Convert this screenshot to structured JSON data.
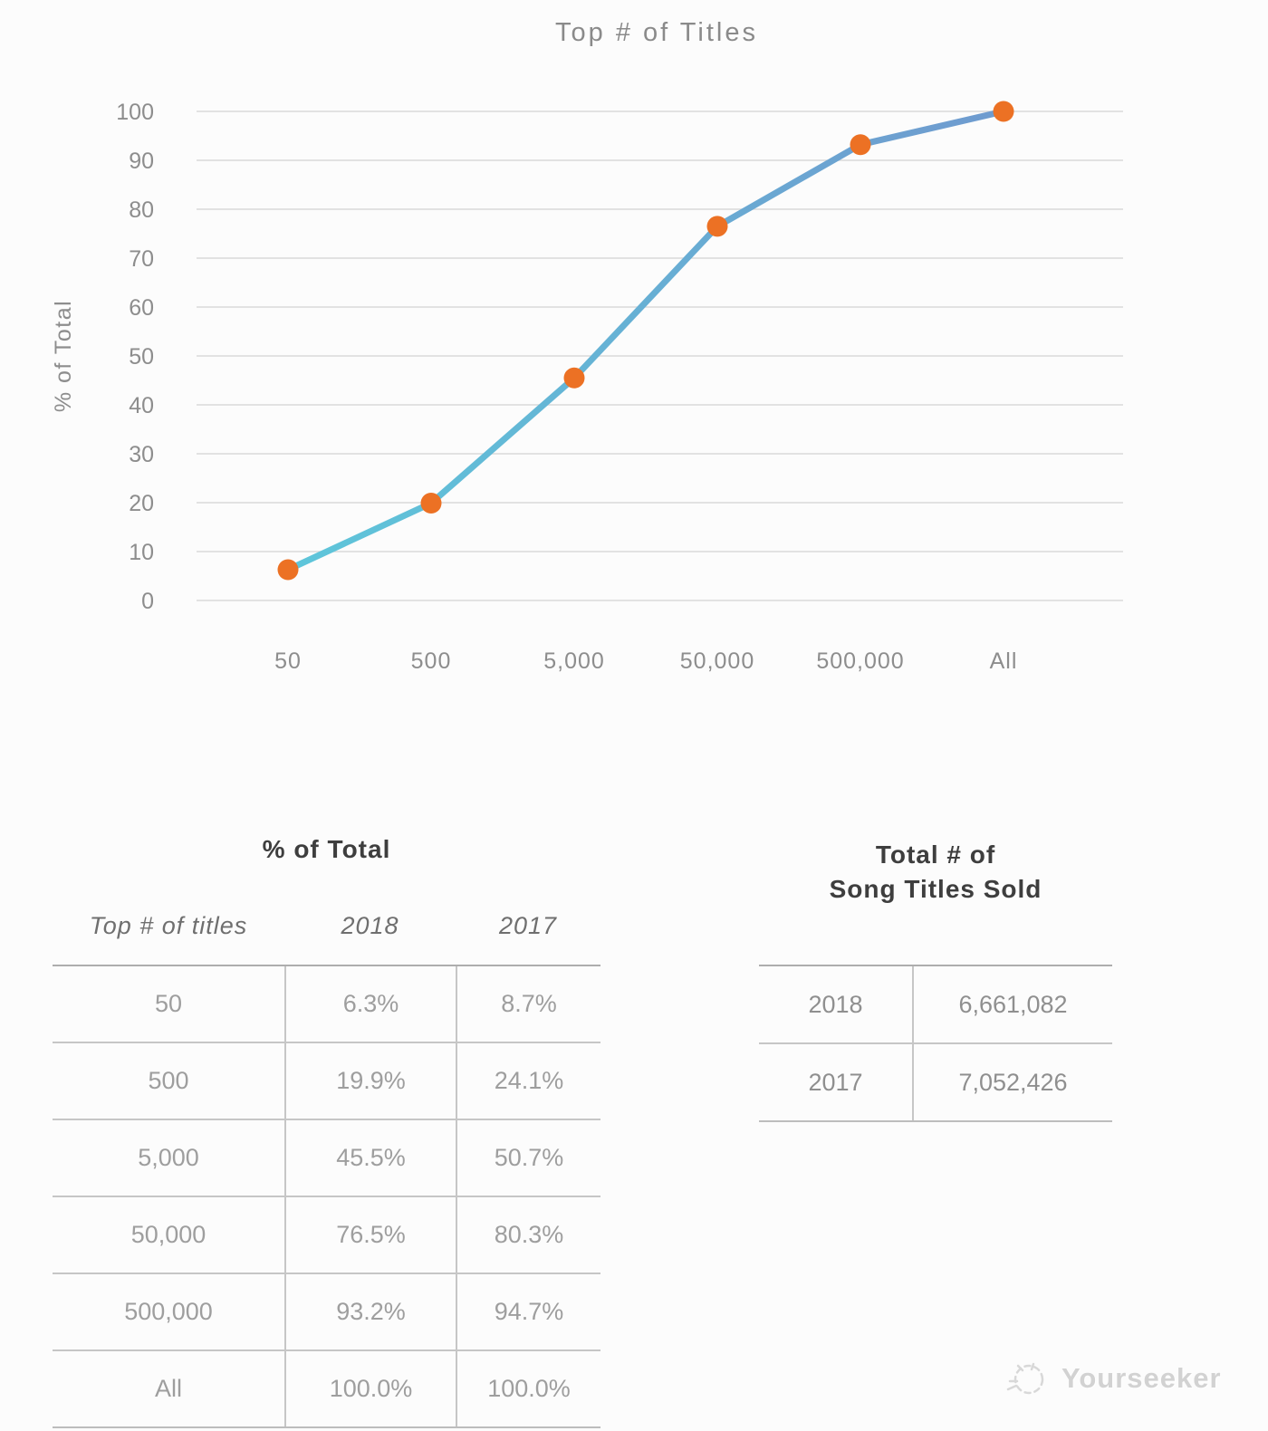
{
  "chart_data": {
    "type": "line",
    "title": "Top # of Titles",
    "ylabel": "% of Total",
    "xlabel": "",
    "categories": [
      "50",
      "500",
      "5,000",
      "50,000",
      "500,000",
      "All"
    ],
    "series": [
      {
        "name": "2018",
        "values": [
          6.3,
          19.9,
          45.5,
          76.5,
          93.2,
          100.0
        ]
      }
    ],
    "ylim": [
      0,
      100
    ],
    "ytick_step": 10,
    "grid": true,
    "legend_position": "none",
    "colors": {
      "line_gradient_start": "#5ec6da",
      "line_gradient_end": "#6f9bcf",
      "marker": "#ec7124",
      "gridline": "#d9d9d9",
      "axis_text": "#8d8d8d"
    }
  },
  "tables": {
    "percent_table": {
      "title": "% of Total",
      "columns": [
        "Top # of titles",
        "2018",
        "2017"
      ],
      "rows": [
        [
          "50",
          "6.3%",
          "8.7%"
        ],
        [
          "500",
          "19.9%",
          "24.1%"
        ],
        [
          "5,000",
          "45.5%",
          "50.7%"
        ],
        [
          "50,000",
          "76.5%",
          "80.3%"
        ],
        [
          "500,000",
          "93.2%",
          "94.7%"
        ],
        [
          "All",
          "100.0%",
          "100.0%"
        ]
      ]
    },
    "totals_table": {
      "title_line1": "Total # of",
      "title_line2": "Song Titles Sold",
      "rows": [
        [
          "2018",
          "6,661,082"
        ],
        [
          "2017",
          "7,052,426"
        ]
      ]
    }
  },
  "watermark": {
    "label": "Yourseeker"
  }
}
